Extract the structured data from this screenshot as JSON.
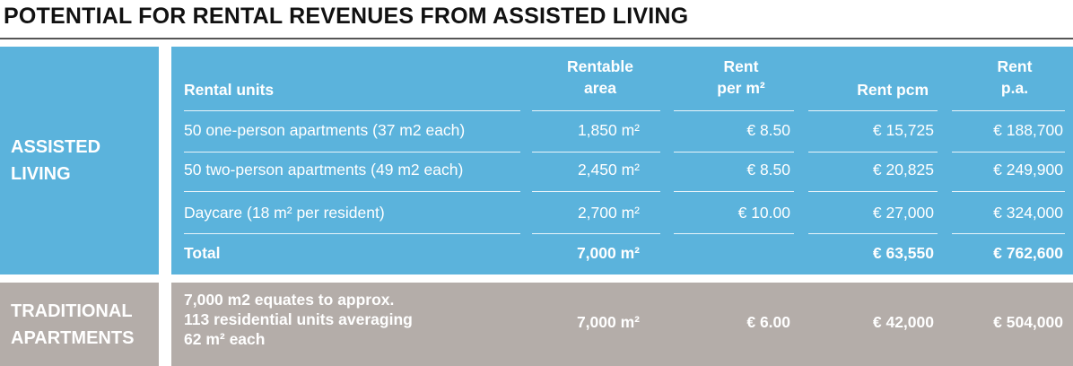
{
  "title": "POTENTIAL FOR RENTAL REVENUES FROM ASSISTED LIVING",
  "assisted": {
    "label_line1": "ASSISTED",
    "label_line2": "LIVING",
    "headers": {
      "units": "Rental units",
      "area_l1": "Rentable",
      "area_l2": "area",
      "rpm_l1": "Rent",
      "rpm_l2": "per m²",
      "pcm": "Rent pcm",
      "pa_l1": "Rent",
      "pa_l2": "p.a."
    },
    "rows": [
      {
        "unit": "50 one-person apartments (37 m2 each)",
        "area": "1,850 m²",
        "rpm": "€ 8.50",
        "pcm": "€ 15,725",
        "pa": "€ 188,700"
      },
      {
        "unit": "50 two-person apartments (49 m2 each)",
        "area": "2,450 m²",
        "rpm": "€ 8.50",
        "pcm": "€ 20,825",
        "pa": "€ 249,900"
      },
      {
        "unit": "Daycare (18 m² per resident)",
        "area": "2,700 m²",
        "rpm": "€ 10.00",
        "pcm": "€ 27,000",
        "pa": "€ 324,000"
      }
    ],
    "total": {
      "label": "Total",
      "area": "7,000 m²",
      "rpm": "",
      "pcm": "€ 63,550",
      "pa": "€ 762,600"
    }
  },
  "traditional": {
    "label_line1": "TRADITIONAL",
    "label_line2": "APARTMENTS",
    "desc_l1": "7,000 m2 equates to approx.",
    "desc_l2": "113 residential units averaging",
    "desc_l3": "62 m² each",
    "area": "7,000 m²",
    "rpm": "€ 6.00",
    "pcm": "€ 42,000",
    "pa": "€ 504,000"
  },
  "colors": {
    "blue": "#5bb3dc",
    "grey": "#b4ada9",
    "title": "#111111"
  }
}
